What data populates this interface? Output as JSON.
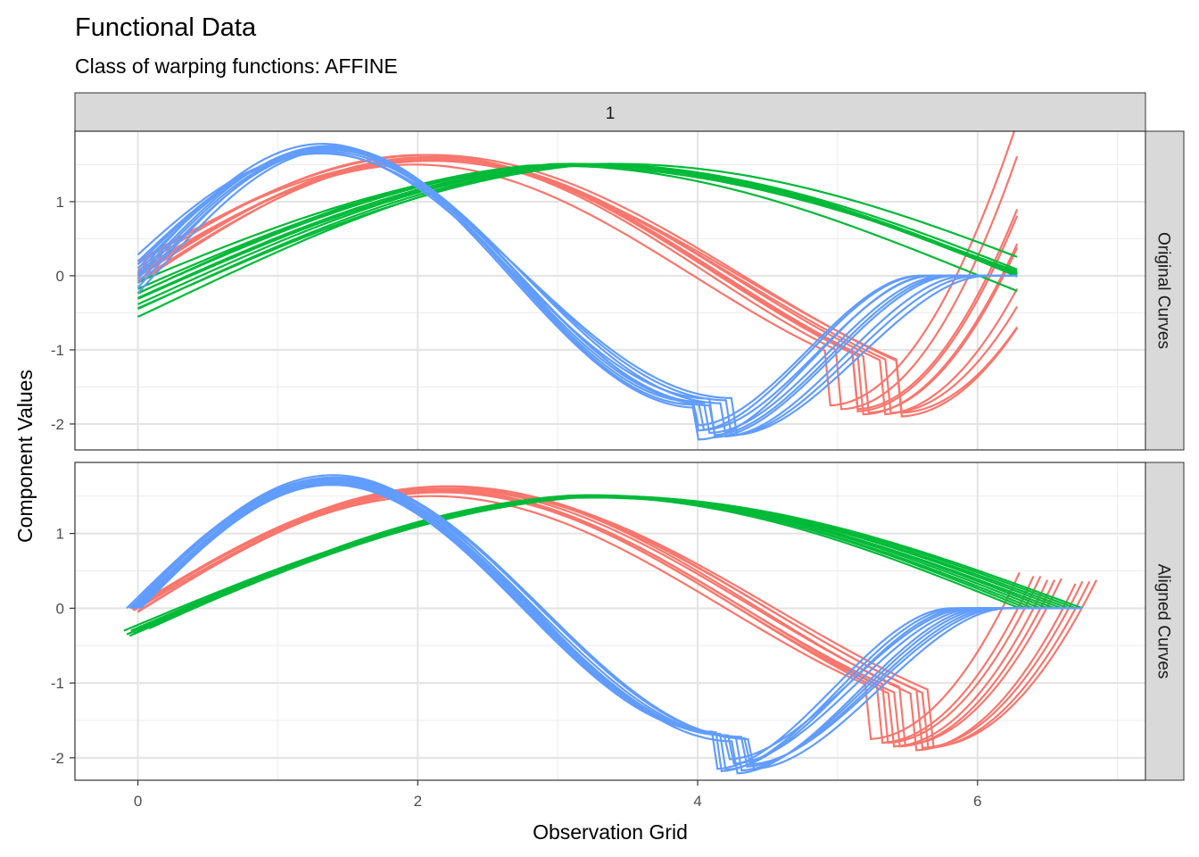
{
  "chart_data": {
    "type": "line",
    "title": "Functional Data",
    "subtitle": "Class of warping functions: AFFINE",
    "xlabel": "Observation Grid",
    "ylabel": "Component Values",
    "column_strip": "1",
    "grid": true,
    "xlim": [
      -0.45,
      7.2
    ],
    "x_ticks": [
      0,
      2,
      4,
      6
    ],
    "x_tick_labels": [
      "0",
      "2",
      "4",
      "6"
    ],
    "colors": {
      "red": "#F8766D",
      "green": "#00BA38",
      "blue": "#619CFF"
    },
    "panels": [
      {
        "strip": "Original Curves",
        "ylim": [
          -2.35,
          1.95
        ],
        "y_ticks": [
          1,
          0,
          -1,
          -2
        ],
        "y_tick_labels": [
          "1",
          "0",
          "-1",
          "-2"
        ],
        "series": [
          {
            "color": "red",
            "curves": [
              {
                "x0": 0,
                "x1": 6.283,
                "a": 0.0,
                "b": 1.0,
                "amp": 1.6,
                "shift": 0.0
              },
              {
                "x0": 0,
                "x1": 6.283,
                "a": 0.05,
                "b": 0.97,
                "amp": 1.62,
                "shift": -0.03
              },
              {
                "x0": 0,
                "x1": 6.283,
                "a": -0.03,
                "b": 1.02,
                "amp": 1.58,
                "shift": 0.02
              },
              {
                "x0": 0,
                "x1": 6.283,
                "a": 0.1,
                "b": 0.95,
                "amp": 1.6,
                "shift": -0.05
              },
              {
                "x0": 0,
                "x1": 6.283,
                "a": -0.08,
                "b": 1.03,
                "amp": 1.55,
                "shift": 0.03
              },
              {
                "x0": 0,
                "x1": 6.283,
                "a": 0.15,
                "b": 0.93,
                "amp": 1.65,
                "shift": -0.02
              },
              {
                "x0": 0,
                "x1": 6.283,
                "a": 0.02,
                "b": 1.05,
                "amp": 1.5,
                "shift": 0.0
              },
              {
                "x0": 0,
                "x1": 6.283,
                "a": -0.12,
                "b": 1.06,
                "amp": 1.55,
                "shift": 0.04
              },
              {
                "x0": 0,
                "x1": 6.283,
                "a": 0.2,
                "b": 0.92,
                "amp": 1.6,
                "shift": -0.04
              },
              {
                "x0": 0,
                "x1": 6.283,
                "a": 0.08,
                "b": 0.99,
                "amp": 1.62,
                "shift": 0.01
              }
            ]
          },
          {
            "color": "green",
            "curves": [
              {
                "x0": 0,
                "x1": 6.283,
                "a": 0.0,
                "b": 1.0,
                "amp": 1.5,
                "shift": -0.3
              },
              {
                "x0": 0,
                "x1": 6.283,
                "a": -0.1,
                "b": 1.01,
                "amp": 1.5,
                "shift": -0.3
              },
              {
                "x0": 0,
                "x1": 6.283,
                "a": 0.1,
                "b": 0.98,
                "amp": 1.51,
                "shift": -0.32
              },
              {
                "x0": 0,
                "x1": 6.283,
                "a": -0.2,
                "b": 1.03,
                "amp": 1.49,
                "shift": -0.28
              },
              {
                "x0": 0,
                "x1": 6.283,
                "a": 0.2,
                "b": 0.96,
                "amp": 1.5,
                "shift": -0.35
              },
              {
                "x0": 0,
                "x1": 6.283,
                "a": -0.3,
                "b": 1.05,
                "amp": 1.5,
                "shift": -0.3
              },
              {
                "x0": 0,
                "x1": 6.283,
                "a": 0.3,
                "b": 0.94,
                "amp": 1.48,
                "shift": -0.34
              },
              {
                "x0": 0,
                "x1": 6.283,
                "a": -0.05,
                "b": 0.99,
                "amp": 1.5,
                "shift": -0.27
              },
              {
                "x0": 0,
                "x1": 6.283,
                "a": 0.15,
                "b": 1.02,
                "amp": 1.49,
                "shift": -0.37
              },
              {
                "x0": 0,
                "x1": 6.283,
                "a": -0.15,
                "b": 0.97,
                "amp": 1.51,
                "shift": -0.31
              }
            ]
          },
          {
            "color": "blue",
            "curves": [
              {
                "x0": 0,
                "x1": 6.283,
                "a": 0.0,
                "b": 1.0,
                "amp": 1.75,
                "shift": 0.0
              },
              {
                "x0": 0,
                "x1": 6.283,
                "a": 0.05,
                "b": 0.97,
                "amp": 1.72,
                "shift": 0.05
              },
              {
                "x0": 0,
                "x1": 6.283,
                "a": -0.05,
                "b": 1.03,
                "amp": 1.7,
                "shift": -0.02
              },
              {
                "x0": 0,
                "x1": 6.283,
                "a": 0.1,
                "b": 0.95,
                "amp": 1.68,
                "shift": 0.08
              },
              {
                "x0": 0,
                "x1": 6.283,
                "a": -0.08,
                "b": 1.05,
                "amp": 1.74,
                "shift": -0.05
              },
              {
                "x0": 0,
                "x1": 6.283,
                "a": 0.15,
                "b": 0.93,
                "amp": 1.65,
                "shift": 0.1
              },
              {
                "x0": 0,
                "x1": 6.283,
                "a": 0.02,
                "b": 1.02,
                "amp": 1.78,
                "shift": 0.03
              },
              {
                "x0": 0,
                "x1": 6.283,
                "a": -0.12,
                "b": 1.06,
                "amp": 1.7,
                "shift": -0.08
              },
              {
                "x0": 0,
                "x1": 6.283,
                "a": 0.08,
                "b": 0.98,
                "amp": 1.66,
                "shift": 0.12
              },
              {
                "x0": 0,
                "x1": 6.283,
                "a": -0.02,
                "b": 1.01,
                "amp": 1.72,
                "shift": 0.0
              }
            ]
          }
        ]
      },
      {
        "strip": "Aligned Curves",
        "ylim": [
          -2.3,
          1.95
        ],
        "y_ticks": [
          1,
          0,
          -1,
          -2
        ],
        "y_tick_labels": [
          "1",
          "0",
          "-1",
          "-2"
        ],
        "series": [
          {
            "color": "red",
            "curves": [
              {
                "x0": -0.05,
                "x1": 6.85,
                "a": 0.0,
                "b": 1.0,
                "amp": 1.6,
                "shift": 0.0
              },
              {
                "x0": -0.03,
                "x1": 6.8,
                "a": 0.0,
                "b": 1.0,
                "amp": 1.62,
                "shift": -0.03
              },
              {
                "x0": -0.02,
                "x1": 6.6,
                "a": 0.0,
                "b": 1.0,
                "amp": 1.58,
                "shift": 0.02
              },
              {
                "x0": 0.0,
                "x1": 6.5,
                "a": 0.0,
                "b": 1.0,
                "amp": 1.6,
                "shift": -0.05
              },
              {
                "x0": 0.0,
                "x1": 6.4,
                "a": 0.0,
                "b": 1.0,
                "amp": 1.55,
                "shift": 0.03
              },
              {
                "x0": -0.04,
                "x1": 6.7,
                "a": 0.0,
                "b": 1.0,
                "amp": 1.65,
                "shift": -0.02
              },
              {
                "x0": 0.0,
                "x1": 6.3,
                "a": 0.0,
                "b": 1.0,
                "amp": 1.5,
                "shift": 0.0
              },
              {
                "x0": -0.01,
                "x1": 6.45,
                "a": 0.0,
                "b": 1.0,
                "amp": 1.55,
                "shift": 0.04
              },
              {
                "x0": 0.0,
                "x1": 6.55,
                "a": 0.0,
                "b": 1.0,
                "amp": 1.6,
                "shift": -0.04
              },
              {
                "x0": -0.03,
                "x1": 6.75,
                "a": 0.0,
                "b": 1.0,
                "amp": 1.62,
                "shift": 0.01
              }
            ]
          },
          {
            "color": "green",
            "curves": [
              {
                "x0": -0.1,
                "x1": 6.75,
                "a": 0.0,
                "b": 1.0,
                "amp": 1.5,
                "shift": -0.3
              },
              {
                "x0": -0.05,
                "x1": 6.6,
                "a": 0.0,
                "b": 1.0,
                "amp": 1.5,
                "shift": -0.3
              },
              {
                "x0": 0.0,
                "x1": 6.5,
                "a": 0.0,
                "b": 1.0,
                "amp": 1.51,
                "shift": -0.32
              },
              {
                "x0": 0.05,
                "x1": 6.4,
                "a": 0.0,
                "b": 1.0,
                "amp": 1.49,
                "shift": -0.28
              },
              {
                "x0": -0.08,
                "x1": 6.7,
                "a": 0.0,
                "b": 1.0,
                "amp": 1.5,
                "shift": -0.35
              },
              {
                "x0": 0.02,
                "x1": 6.3,
                "a": 0.0,
                "b": 1.0,
                "amp": 1.5,
                "shift": -0.3
              },
              {
                "x0": -0.03,
                "x1": 6.55,
                "a": 0.0,
                "b": 1.0,
                "amp": 1.48,
                "shift": -0.34
              },
              {
                "x0": 0.08,
                "x1": 6.35,
                "a": 0.0,
                "b": 1.0,
                "amp": 1.5,
                "shift": -0.27
              },
              {
                "x0": -0.06,
                "x1": 6.65,
                "a": 0.0,
                "b": 1.0,
                "amp": 1.49,
                "shift": -0.37
              },
              {
                "x0": 0.0,
                "x1": 6.45,
                "a": 0.0,
                "b": 1.0,
                "amp": 1.51,
                "shift": -0.31
              }
            ]
          },
          {
            "color": "blue",
            "curves": [
              {
                "x0": -0.08,
                "x1": 6.75,
                "a": 0.0,
                "b": 1.0,
                "amp": 1.75,
                "shift": 0.0
              },
              {
                "x0": -0.05,
                "x1": 6.6,
                "a": 0.0,
                "b": 1.0,
                "amp": 1.72,
                "shift": 0.05
              },
              {
                "x0": -0.02,
                "x1": 6.5,
                "a": 0.0,
                "b": 1.0,
                "amp": 1.7,
                "shift": -0.02
              },
              {
                "x0": 0.0,
                "x1": 6.4,
                "a": 0.0,
                "b": 1.0,
                "amp": 1.68,
                "shift": 0.08
              },
              {
                "x0": -0.06,
                "x1": 6.7,
                "a": 0.0,
                "b": 1.0,
                "amp": 1.74,
                "shift": -0.05
              },
              {
                "x0": 0.02,
                "x1": 6.3,
                "a": 0.0,
                "b": 1.0,
                "amp": 1.65,
                "shift": 0.1
              },
              {
                "x0": -0.04,
                "x1": 6.55,
                "a": 0.0,
                "b": 1.0,
                "amp": 1.78,
                "shift": 0.03
              },
              {
                "x0": -0.01,
                "x1": 6.45,
                "a": 0.0,
                "b": 1.0,
                "amp": 1.7,
                "shift": -0.08
              },
              {
                "x0": 0.01,
                "x1": 6.35,
                "a": 0.0,
                "b": 1.0,
                "amp": 1.66,
                "shift": 0.12
              },
              {
                "x0": -0.03,
                "x1": 6.65,
                "a": 0.0,
                "b": 1.0,
                "amp": 1.72,
                "shift": 0.0
              }
            ]
          }
        ]
      }
    ]
  }
}
